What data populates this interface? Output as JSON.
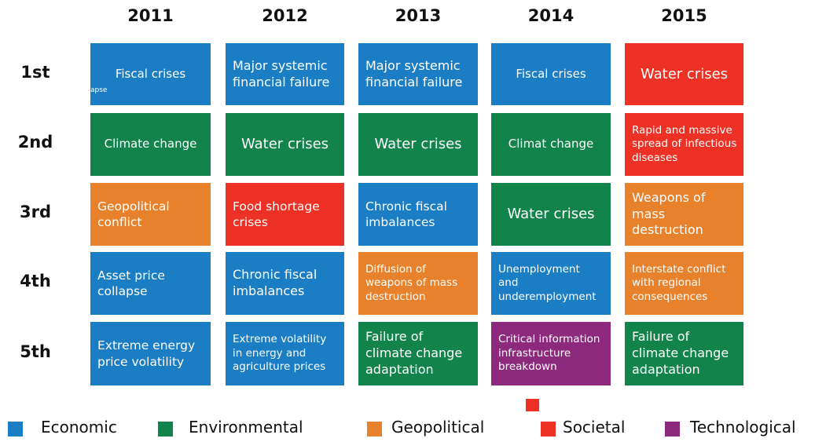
{
  "years": [
    "2011",
    "2012",
    "2013",
    "2014",
    "2015"
  ],
  "ranks": [
    "1st",
    "2nd",
    "3rd",
    "4th",
    "5th"
  ],
  "cells": [
    [
      {
        "lines": [
          "Fiscal crises"
        ],
        "color": "#1b7dc4",
        "fragment": "apse"
      },
      {
        "lines": [
          "Major systemic",
          "financial  failure"
        ],
        "color": "#1b7dc4"
      },
      {
        "lines": [
          "Major systemic",
          "financial  failure"
        ],
        "color": "#1b7dc4"
      },
      {
        "lines": [
          "Fiscal crises"
        ],
        "color": "#1b7dc4"
      },
      {
        "lines": [
          "Water crises"
        ],
        "color": "#ed3124"
      }
    ],
    [
      {
        "lines": [
          "Climate change"
        ],
        "color": "#13834c"
      },
      {
        "lines": [
          "Water crises"
        ],
        "color": "#13834c"
      },
      {
        "lines": [
          "Water crises"
        ],
        "color": "#13834c"
      },
      {
        "lines": [
          "Climat change"
        ],
        "color": "#13834c"
      },
      {
        "lines": [
          "Rapid and massive",
          "spread of infectious",
          "diseases"
        ],
        "color": "#ed3124"
      }
    ],
    [
      {
        "lines": [
          "Geopolitical",
          "conflict"
        ],
        "color": "#e8812b"
      },
      {
        "lines": [
          "Food shortage",
          "crises"
        ],
        "color": "#ed3124"
      },
      {
        "lines": [
          "Chronic fiscal",
          "imbalances"
        ],
        "color": "#1b7dc4"
      },
      {
        "lines": [
          "Water crises"
        ],
        "color": "#13834c"
      },
      {
        "lines": [
          "Weapons of",
          "mass",
          "destruction"
        ],
        "color": "#e8812b"
      }
    ],
    [
      {
        "lines": [
          "Asset price",
          "collapse"
        ],
        "color": "#1b7dc4"
      },
      {
        "lines": [
          "Chronic fiscal",
          "imbalances"
        ],
        "color": "#1b7dc4"
      },
      {
        "lines": [
          "Diffusion of",
          "weapons of mass",
          "destruction"
        ],
        "color": "#e8812b"
      },
      {
        "lines": [
          "Unemployment",
          "and",
          "underemployment"
        ],
        "color": "#1b7dc4"
      },
      {
        "lines": [
          "Interstate conflict",
          "with regional",
          "consequences"
        ],
        "color": "#e8812b"
      }
    ],
    [
      {
        "lines": [
          "Extreme energy",
          "price volatility"
        ],
        "color": "#1b7dc4"
      },
      {
        "lines": [
          "Extreme volatility",
          "in energy and",
          "agriculture prices"
        ],
        "color": "#1b7dc4"
      },
      {
        "lines": [
          "Failure of",
          "climate change",
          "adaptation"
        ],
        "color": "#13834c"
      },
      {
        "lines": [
          "Critical information",
          "infrastructure",
          "breakdown"
        ],
        "color": "#8e2a7e"
      },
      {
        "lines": [
          "Failure of",
          "climate change",
          "adaptation"
        ],
        "color": "#13834c"
      }
    ]
  ],
  "legend": [
    {
      "label": "Economic",
      "color": "#1b7dc4"
    },
    {
      "label": "Environmental",
      "color": "#13834c"
    },
    {
      "label": "Geopolitical",
      "color": "#e8812b"
    },
    {
      "label": "Societal",
      "color": "#ed3124"
    },
    {
      "label": "Technological",
      "color": "#8e2a7e"
    }
  ]
}
